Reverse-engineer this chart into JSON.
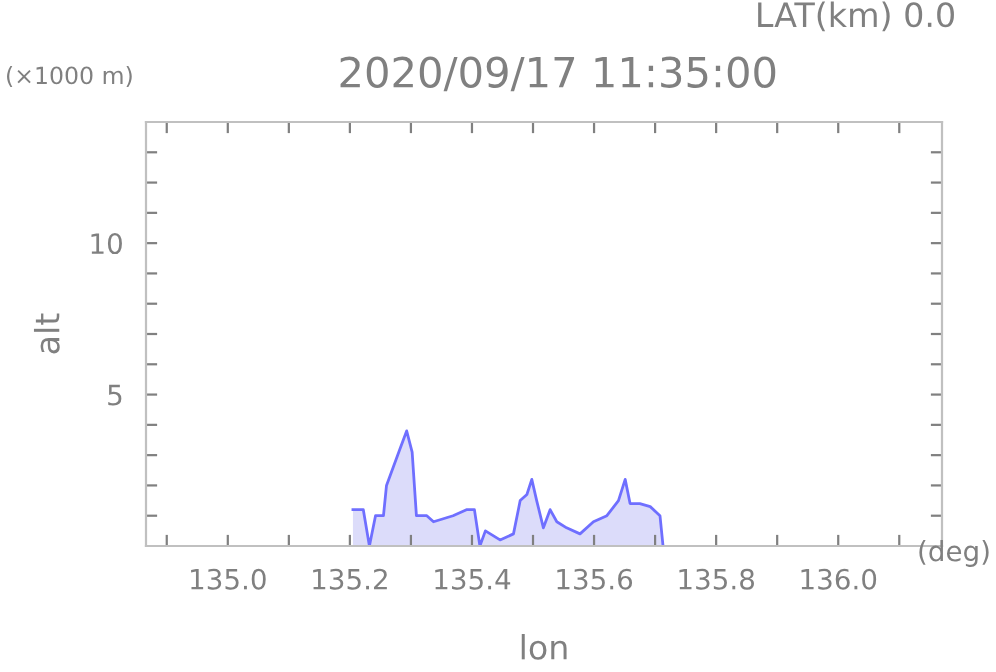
{
  "chart_data": {
    "type": "area",
    "title": "2020/09/17 11:35:00",
    "subtitle": "LAT(km) 0.0",
    "xlabel": "lon",
    "ylabel": "alt",
    "annotations": [
      "(×1000 m)",
      "(deg)"
    ],
    "x": [
      135.205,
      135.222,
      135.232,
      135.242,
      135.255,
      135.26,
      135.271,
      135.282,
      135.293,
      135.302,
      135.309,
      135.326,
      135.337,
      135.369,
      135.391,
      135.404,
      135.413,
      135.422,
      135.446,
      135.468,
      135.479,
      135.49,
      135.498,
      135.506,
      135.517,
      135.528,
      135.539,
      135.555,
      135.577,
      135.599,
      135.621,
      135.64,
      135.651,
      135.659,
      135.675,
      135.692,
      135.708,
      135.713
    ],
    "series": [
      {
        "color": "#6f6fff",
        "values": [
          1.2,
          1.2,
          0,
          1.0,
          1.0,
          2.0,
          2.6,
          3.2,
          3.8,
          3.1,
          1.0,
          1.0,
          0.8,
          1.0,
          1.2,
          1.2,
          0,
          0.5,
          0.2,
          0.4,
          1.5,
          1.7,
          2.2,
          1.5,
          0.6,
          1.2,
          0.8,
          0.6,
          0.4,
          0.8,
          1.0,
          1.5,
          2.2,
          1.4,
          1.4,
          1.3,
          1.0,
          0
        ]
      }
    ],
    "xlim": [
      134.866,
      136.17
    ],
    "ylim": [
      0,
      14
    ],
    "xticks": [
      {
        "value": 134.9,
        "label": null
      },
      {
        "value": 135.0,
        "label": "135.0"
      },
      {
        "value": 135.1,
        "label": null
      },
      {
        "value": 135.2,
        "label": "135.2"
      },
      {
        "value": 135.3,
        "label": null
      },
      {
        "value": 135.4,
        "label": "135.4"
      },
      {
        "value": 135.5,
        "label": null
      },
      {
        "value": 135.6,
        "label": "135.6"
      },
      {
        "value": 135.7,
        "label": null
      },
      {
        "value": 135.8,
        "label": "135.8"
      },
      {
        "value": 135.9,
        "label": null
      },
      {
        "value": 136.0,
        "label": "136.0"
      },
      {
        "value": 136.1,
        "label": null
      }
    ],
    "yticks": [
      {
        "value": 1,
        "label": null
      },
      {
        "value": 2,
        "label": null
      },
      {
        "value": 3,
        "label": null
      },
      {
        "value": 4,
        "label": null
      },
      5,
      {
        "value": 6,
        "label": null
      },
      {
        "value": 7,
        "label": null
      },
      {
        "value": 8,
        "label": null
      },
      {
        "value": 9,
        "label": null
      },
      10,
      {
        "value": 11,
        "label": null
      },
      {
        "value": 12,
        "label": null
      },
      {
        "value": 13,
        "label": null
      }
    ],
    "grid": false,
    "legend": false
  }
}
